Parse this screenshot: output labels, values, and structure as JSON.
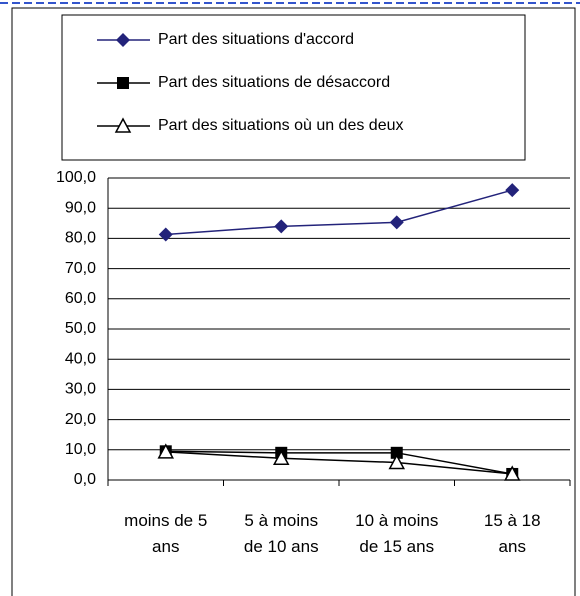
{
  "chart_data": {
    "type": "line",
    "categories": [
      "moins de 5 ans",
      "5 à moins de 10 ans",
      "10 à moins de 15 ans",
      "15 à 18 ans"
    ],
    "series": [
      {
        "name": "Part des situations d'accord",
        "color": "#23237a",
        "marker": "diamond",
        "values": [
          81.3,
          84.0,
          85.3,
          96.0
        ]
      },
      {
        "name": "Part des situations de désaccord",
        "color": "#000000",
        "marker": "square",
        "values": [
          9.5,
          9.0,
          9.0,
          2.0
        ]
      },
      {
        "name": "Part des situations où un des deux",
        "color": "#000000",
        "marker": "triangle",
        "values": [
          9.3,
          7.2,
          5.8,
          2.0
        ]
      }
    ],
    "ylim": [
      0,
      100
    ],
    "yticks": [
      {
        "value": 0,
        "label": "0,0"
      },
      {
        "value": 10,
        "label": "10,0"
      },
      {
        "value": 20,
        "label": "20,0"
      },
      {
        "value": 30,
        "label": "30,0"
      },
      {
        "value": 40,
        "label": "40,0"
      },
      {
        "value": 50,
        "label": "50,0"
      },
      {
        "value": 60,
        "label": "60,0"
      },
      {
        "value": 70,
        "label": "70,0"
      },
      {
        "value": 80,
        "label": "80,0"
      },
      {
        "value": 90,
        "label": "90,0"
      },
      {
        "value": 100,
        "label": "100,0"
      }
    ],
    "grid": true
  }
}
